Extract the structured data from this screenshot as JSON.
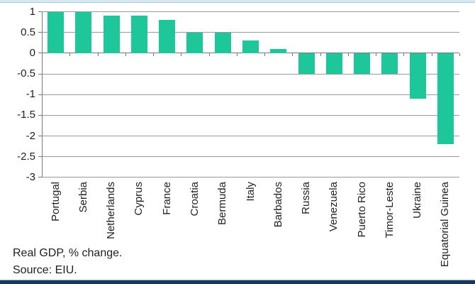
{
  "chart_data": {
    "type": "bar",
    "title": "",
    "categories": [
      "Portugal",
      "Serbia",
      "Netherlands",
      "Cyprus",
      "France",
      "Croatia",
      "Bermuda",
      "Italy",
      "Barbados",
      "Russia",
      "Venezuela",
      "Puerto Rico",
      "Timor-Leste",
      "Ukraine",
      "Equatorial Guinea"
    ],
    "values": [
      1.0,
      1.0,
      0.9,
      0.9,
      0.8,
      0.5,
      0.5,
      0.3,
      0.1,
      -0.5,
      -0.5,
      -0.5,
      -0.5,
      -1.1,
      -2.2
    ],
    "xlabel": "",
    "ylabel": "",
    "ylim": [
      -3,
      1
    ],
    "yticks": [
      1,
      0.5,
      0,
      -0.5,
      -1,
      -1.5,
      -2,
      -2.5,
      -3
    ],
    "ytick_labels": [
      "1",
      "0.5",
      "0",
      "-0.5",
      "-1",
      "-1.5",
      "-2",
      "-2.5",
      "-3"
    ],
    "grid": true,
    "legend": "none"
  },
  "footnotes": {
    "line1": "Real GDP, % change.",
    "line2": "Source: EIU."
  },
  "colors": {
    "bar": "#1ec79a",
    "gridline": "#9a9a9a",
    "axis": "#7a7a7a",
    "text": "#1f1f1f",
    "background": "#ffffff",
    "top_strip": "#d8e8f3",
    "top_strip_edge": "#aacbe2",
    "bottom_bar": "#17375e",
    "bottom_bar_edge": "#7d9cb5"
  }
}
